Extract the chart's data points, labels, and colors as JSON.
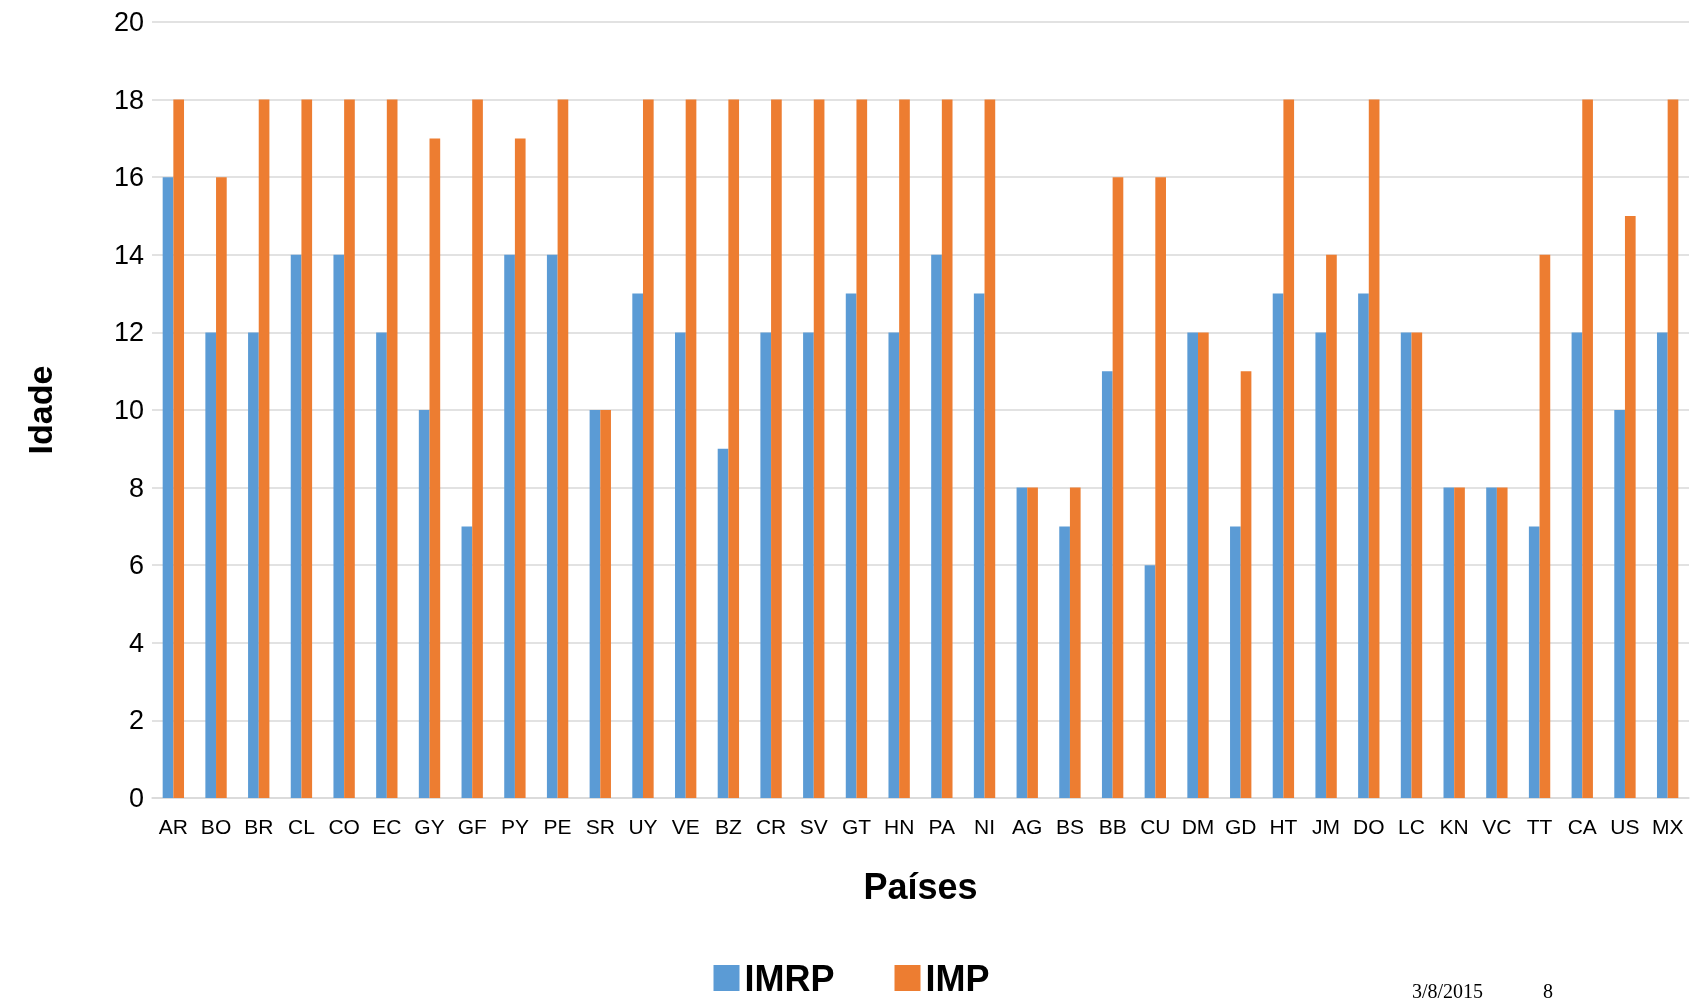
{
  "chart_data": {
    "type": "bar",
    "xlabel": "Países",
    "ylabel": "Idade",
    "categories": [
      "AR",
      "BO",
      "BR",
      "CL",
      "CO",
      "EC",
      "GY",
      "GF",
      "PY",
      "PE",
      "SR",
      "UY",
      "VE",
      "BZ",
      "CR",
      "SV",
      "GT",
      "HN",
      "PA",
      "NI",
      "AG",
      "BS",
      "BB",
      "CU",
      "DM",
      "GD",
      "HT",
      "JM",
      "DO",
      "LC",
      "KN",
      "VC",
      "TT",
      "CA",
      "US",
      "MX"
    ],
    "series": [
      {
        "name": "IMRP",
        "color": "#5b9bd5",
        "values": [
          16,
          12,
          12,
          14,
          14,
          12,
          10,
          7,
          14,
          14,
          10,
          13,
          12,
          9,
          12,
          12,
          13,
          12,
          14,
          13,
          8,
          7,
          11,
          6,
          12,
          7,
          13,
          12,
          13,
          12,
          8,
          8,
          7,
          12,
          10,
          12
        ]
      },
      {
        "name": "IMP",
        "color": "#ed7d31",
        "values": [
          18,
          16,
          18,
          18,
          18,
          18,
          17,
          18,
          17,
          18,
          10,
          18,
          18,
          18,
          18,
          18,
          18,
          18,
          18,
          18,
          8,
          8,
          16,
          16,
          12,
          11,
          18,
          14,
          18,
          12,
          8,
          8,
          14,
          18,
          15,
          18
        ]
      }
    ],
    "ylim": [
      0,
      20
    ],
    "yticks": [
      0,
      2,
      4,
      6,
      8,
      10,
      12,
      14,
      16,
      18,
      20
    ],
    "grid": "y",
    "legend": "bottom",
    "annotations": [
      "3/8/2015",
      "8"
    ]
  }
}
